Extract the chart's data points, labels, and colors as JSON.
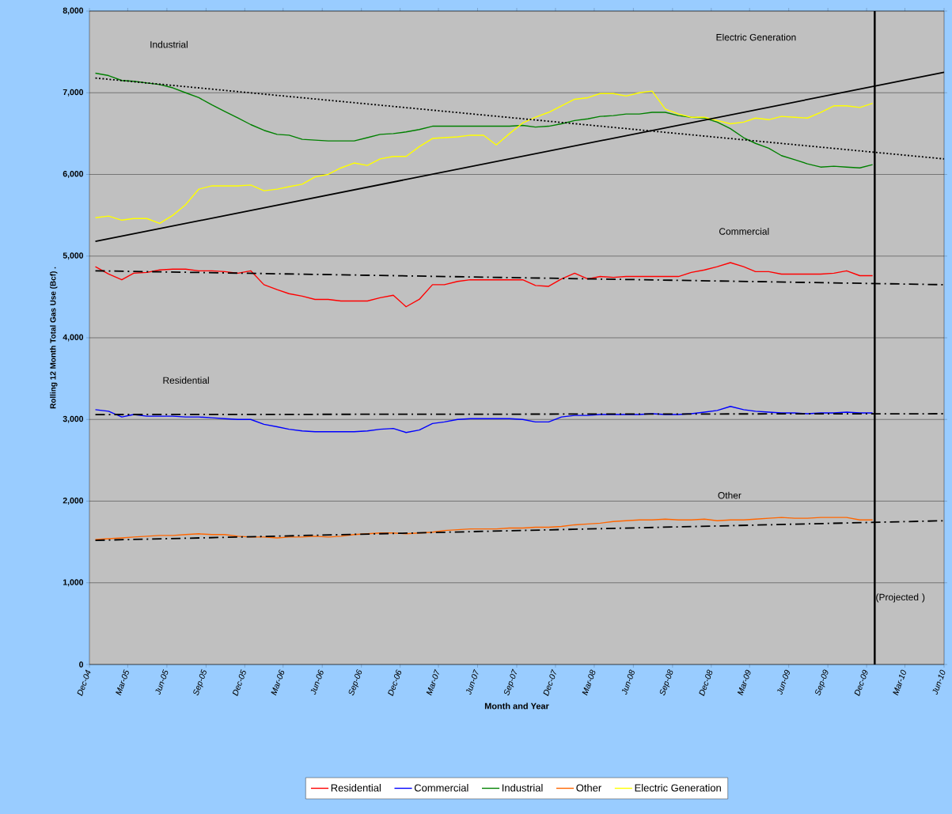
{
  "chart_data": {
    "type": "line",
    "xlabel": "Month and Year",
    "ylabel": "Rolling 12 Month Total Gas Use (Bcf) .",
    "x": [
      "2004-12-15",
      "2005-01-15",
      "2005-02-15",
      "2005-03-15",
      "2005-04-15",
      "2005-05-15",
      "2005-06-15",
      "2005-07-15",
      "2005-08-15",
      "2005-09-15",
      "2005-10-15",
      "2005-11-15",
      "2005-12-15",
      "2006-01-15",
      "2006-02-15",
      "2006-03-15",
      "2006-04-15",
      "2006-05-15",
      "2006-06-15",
      "2006-07-15",
      "2006-08-15",
      "2006-09-15",
      "2006-10-15",
      "2006-11-15",
      "2006-12-15",
      "2007-01-15",
      "2007-02-15",
      "2007-03-15",
      "2007-04-15",
      "2007-05-15",
      "2007-06-15",
      "2007-07-15",
      "2007-08-15",
      "2007-09-15",
      "2007-10-15",
      "2007-11-15",
      "2007-12-15",
      "2008-01-15",
      "2008-02-15",
      "2008-03-15",
      "2008-04-15",
      "2008-05-15",
      "2008-06-15",
      "2008-07-15",
      "2008-08-15",
      "2008-09-15",
      "2008-10-15",
      "2008-11-15",
      "2008-12-15",
      "2009-01-15",
      "2009-02-15",
      "2009-03-15",
      "2009-04-15",
      "2009-05-15",
      "2009-06-15",
      "2009-07-15",
      "2009-08-15",
      "2009-09-15",
      "2009-10-15",
      "2009-11-15",
      "2009-12-15"
    ],
    "series": [
      {
        "name": "Residential",
        "color": "#ff0000",
        "values": [
          4870,
          4780,
          4710,
          4790,
          4800,
          4830,
          4840,
          4840,
          4820,
          4820,
          4810,
          4790,
          4820,
          4650,
          4590,
          4540,
          4510,
          4470,
          4470,
          4450,
          4450,
          4450,
          4490,
          4520,
          4380,
          4470,
          4650,
          4650,
          4690,
          4710,
          4710,
          4710,
          4710,
          4710,
          4640,
          4630,
          4720,
          4790,
          4720,
          4750,
          4740,
          4750,
          4750,
          4750,
          4750,
          4750,
          4800,
          4830,
          4870,
          4920,
          4870,
          4810,
          4810,
          4780,
          4780,
          4780,
          4780,
          4790,
          4820,
          4760,
          4760
        ]
      },
      {
        "name": "Commercial",
        "color": "#0000ff",
        "values": [
          3120,
          3100,
          3030,
          3060,
          3040,
          3040,
          3040,
          3030,
          3030,
          3020,
          3010,
          3000,
          3000,
          2940,
          2910,
          2880,
          2860,
          2850,
          2850,
          2850,
          2850,
          2860,
          2880,
          2890,
          2840,
          2870,
          2950,
          2970,
          3000,
          3010,
          3010,
          3010,
          3010,
          3000,
          2970,
          2970,
          3030,
          3050,
          3050,
          3060,
          3060,
          3060,
          3060,
          3070,
          3060,
          3060,
          3070,
          3090,
          3110,
          3160,
          3120,
          3100,
          3090,
          3080,
          3080,
          3070,
          3080,
          3080,
          3090,
          3080,
          3080
        ]
      },
      {
        "name": "Industrial",
        "color": "#008000",
        "values": [
          7240,
          7210,
          7150,
          7140,
          7120,
          7100,
          7060,
          7000,
          6940,
          6850,
          6770,
          6690,
          6610,
          6540,
          6490,
          6480,
          6430,
          6420,
          6410,
          6410,
          6410,
          6450,
          6490,
          6500,
          6520,
          6550,
          6590,
          6590,
          6590,
          6590,
          6590,
          6590,
          6590,
          6600,
          6580,
          6590,
          6620,
          6660,
          6680,
          6710,
          6720,
          6740,
          6740,
          6760,
          6760,
          6720,
          6700,
          6690,
          6640,
          6560,
          6450,
          6380,
          6320,
          6230,
          6180,
          6130,
          6090,
          6100,
          6090,
          6080,
          6120
        ]
      },
      {
        "name": "Other",
        "color": "#ff6600",
        "values": [
          1530,
          1540,
          1550,
          1560,
          1570,
          1580,
          1580,
          1590,
          1600,
          1590,
          1590,
          1570,
          1560,
          1560,
          1550,
          1560,
          1560,
          1570,
          1560,
          1570,
          1590,
          1600,
          1610,
          1610,
          1600,
          1610,
          1620,
          1640,
          1650,
          1660,
          1660,
          1660,
          1670,
          1670,
          1680,
          1680,
          1690,
          1710,
          1720,
          1730,
          1750,
          1760,
          1770,
          1770,
          1780,
          1770,
          1770,
          1780,
          1760,
          1770,
          1770,
          1780,
          1790,
          1800,
          1790,
          1790,
          1800,
          1800,
          1800,
          1770,
          1770
        ]
      },
      {
        "name": "Electric Generation",
        "color": "#ffff00",
        "values": [
          5470,
          5490,
          5440,
          5460,
          5460,
          5400,
          5500,
          5630,
          5820,
          5860,
          5860,
          5860,
          5870,
          5800,
          5820,
          5850,
          5880,
          5970,
          6000,
          6080,
          6140,
          6110,
          6190,
          6220,
          6220,
          6340,
          6440,
          6450,
          6460,
          6480,
          6480,
          6360,
          6500,
          6630,
          6700,
          6760,
          6840,
          6920,
          6940,
          6990,
          6990,
          6960,
          7000,
          7020,
          6800,
          6740,
          6700,
          6700,
          6660,
          6620,
          6640,
          6690,
          6670,
          6710,
          6700,
          6690,
          6760,
          6840,
          6840,
          6820,
          6870
        ]
      },
      {
        "color": "#000000",
        "line_style": "solid",
        "x": [
          "2004-12-15",
          "2010-06-01"
        ],
        "values": [
          5180,
          7250
        ]
      },
      {
        "color": "#000000",
        "line_style": "dotted",
        "x": [
          "2004-12-15",
          "2010-06-01"
        ],
        "values": [
          7180,
          6190
        ]
      },
      {
        "color": "#000000",
        "line_style": "dashed",
        "x": [
          "2004-12-15",
          "2010-06-01"
        ],
        "values": [
          4820,
          4650
        ]
      },
      {
        "color": "#000000",
        "line_style": "dashed",
        "x": [
          "2004-12-15",
          "2010-06-01"
        ],
        "values": [
          3060,
          3070
        ]
      },
      {
        "color": "#000000",
        "line_style": "dashed",
        "x": [
          "2004-12-15",
          "2010-06-01"
        ],
        "values": [
          1520,
          1760
        ]
      }
    ],
    "xlim": [
      "2004-12-01",
      "2010-06-01"
    ],
    "xticks": [
      {
        "value": "2004-12-01",
        "label": "Dec-04"
      },
      {
        "value": "2005-03-01",
        "label": "Mar-05"
      },
      {
        "value": "2005-06-01",
        "label": "Jun-05"
      },
      {
        "value": "2005-09-01",
        "label": "Sep-05"
      },
      {
        "value": "2005-12-01",
        "label": "Dec-05"
      },
      {
        "value": "2006-03-01",
        "label": "Mar-06"
      },
      {
        "value": "2006-06-01",
        "label": "Jun-06"
      },
      {
        "value": "2006-09-01",
        "label": "Sep-06"
      },
      {
        "value": "2006-12-01",
        "label": "Dec-06"
      },
      {
        "value": "2007-03-01",
        "label": "Mar-07"
      },
      {
        "value": "2007-06-01",
        "label": "Jun-07"
      },
      {
        "value": "2007-09-01",
        "label": "Sep-07"
      },
      {
        "value": "2007-12-01",
        "label": "Dec-07"
      },
      {
        "value": "2008-03-01",
        "label": "Mar-08"
      },
      {
        "value": "2008-06-01",
        "label": "Jun-08"
      },
      {
        "value": "2008-09-01",
        "label": "Sep-08"
      },
      {
        "value": "2008-12-01",
        "label": "Dec-08"
      },
      {
        "value": "2009-03-01",
        "label": "Mar-09"
      },
      {
        "value": "2009-06-01",
        "label": "Jun-09"
      },
      {
        "value": "2009-09-01",
        "label": "Sep-09"
      },
      {
        "value": "2009-12-01",
        "label": "Dec-09"
      },
      {
        "value": "2010-03-01",
        "label": "Mar-10"
      },
      {
        "value": "2010-06-01",
        "label": "Jun-10"
      }
    ],
    "ylim": [
      0,
      8000
    ],
    "yticks": [
      0,
      {
        "value": 1000,
        "label": "1,000"
      },
      {
        "value": 2000,
        "label": "2,000"
      },
      {
        "value": 3000,
        "label": "3,000"
      },
      {
        "value": 4000,
        "label": "4,000"
      },
      {
        "value": 5000,
        "label": "5,000"
      },
      {
        "value": 6000,
        "label": "6,000"
      },
      {
        "value": 7000,
        "label": "7,000"
      },
      {
        "value": 8000,
        "label": "8,000"
      }
    ],
    "grid": "y",
    "legend": "bottom",
    "line_style": "solid",
    "ref_lines": [
      {
        "axis": "x",
        "value": "2009-12-20",
        "label": "(Projected )",
        "color": "#000000"
      }
    ],
    "annotations": [
      "Industrial",
      "Electric Generation",
      "Commercial",
      "Residential",
      "Other"
    ]
  }
}
